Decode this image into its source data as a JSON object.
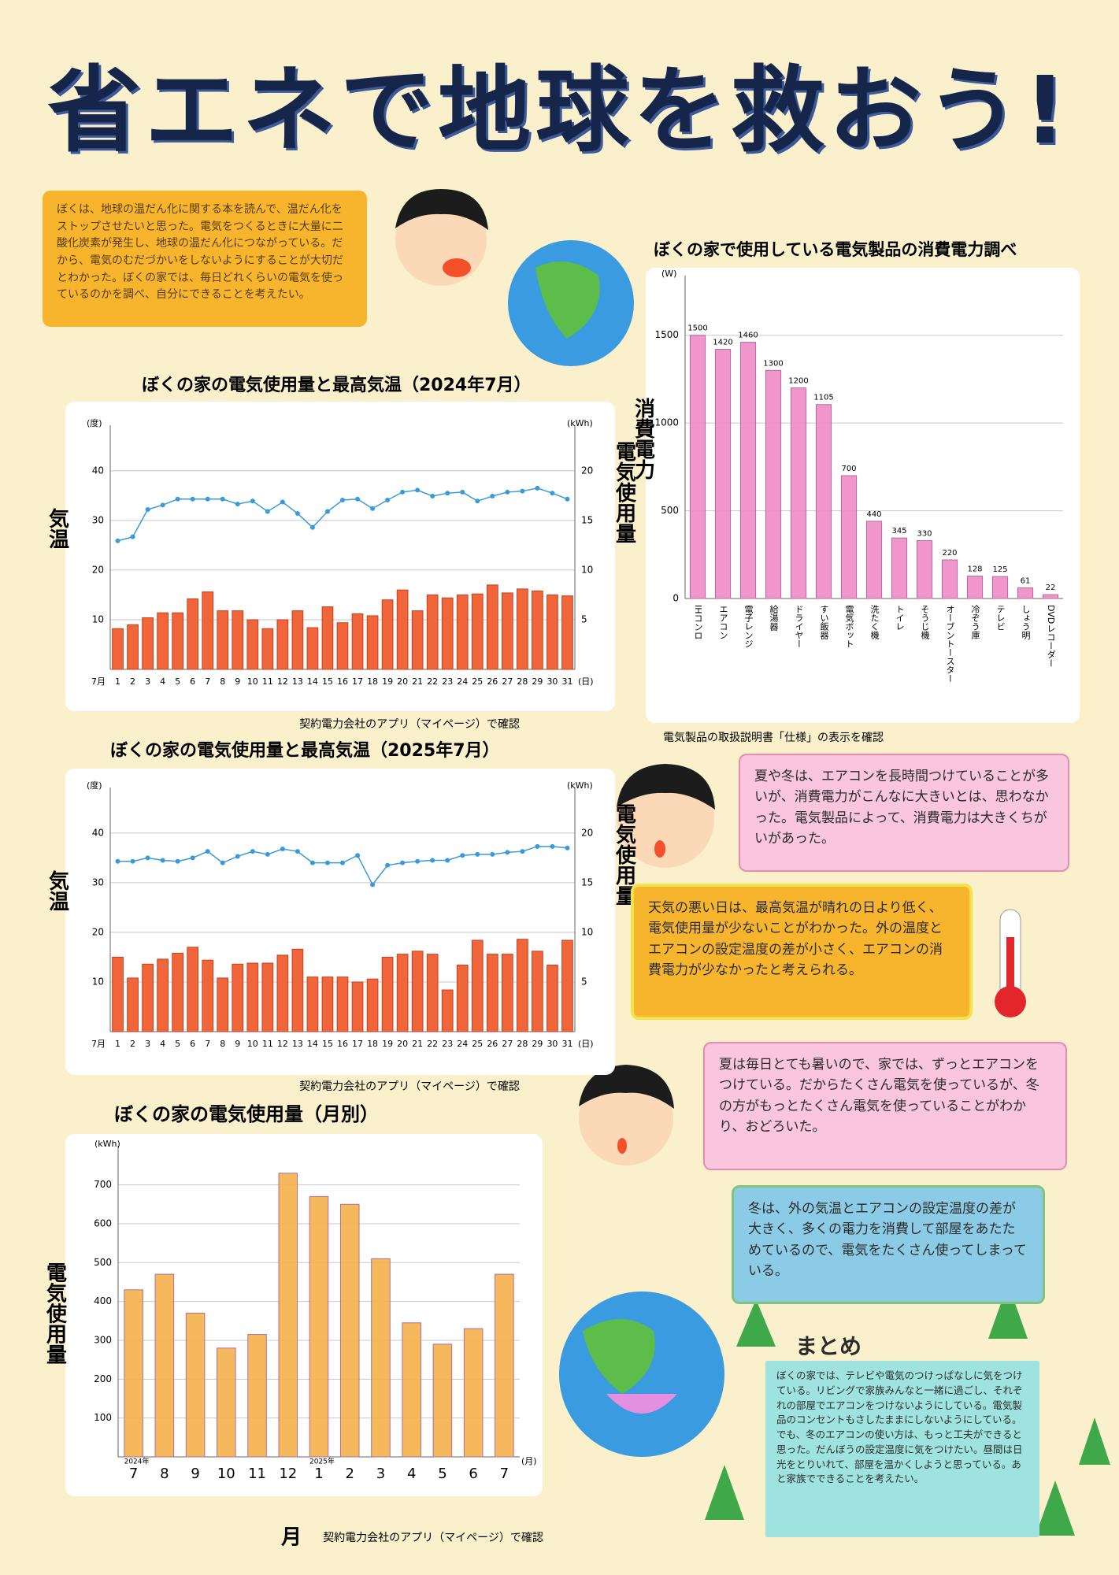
{
  "title": "省エネで地球を救おう!",
  "intro": "ぼくは、地球の温だん化に関する本を読んで、温だん化をストップさせたいと思った。電気をつくるときに大量に二酸化炭素が発生し、地球の温だん化につながっている。だから、電気のむだづかいをしないようにすることが大切だとわかった。ぼくの家では、毎日どれくらいの電気を使っているのかを調べ、自分にできることを考えたい。",
  "bubble_1": "夏や冬は、エアコンを長時間つけていることが多いが、消費電力がこんなに大きいとは、思わなかった。電気製品によって、消費電力は大きくちがいがあった。",
  "note_weather": "天気の悪い日は、最高気温が晴れの日より低く、電気使用量が少ないことがわかった。外の温度とエアコンの設定温度の差が小さく、エアコンの消費電力が少なかったと考えられる。",
  "bubble_2": "夏は毎日とても暑いので、家では、ずっとエアコンをつけている。だからたくさん電気を使っているが、冬の方がもっとたくさん電気を使っていることがわかり、おどろいた。",
  "note_winter": "冬は、外の気温とエアコンの設定温度の差が大きく、多くの電力を消費して部屋をあたためているので、電気をたくさん使ってしまっている。",
  "summary": {
    "title": "まとめ",
    "text": "ぼくの家では、テレビや電気のつけっぱなしに気をつけている。リビングで家族みんなと一緒に過ごし、それぞれの部屋でエアコンをつけないようにしている。電気製品のコンセントもさしたままにしないようにしている。でも、冬のエアコンの使い方は、もっと工夫ができると思った。だんぼうの設定温度に気をつけたい。昼間は日光をとりいれて、部屋を温かくしようと思っている。あと家族でできることを考えたい。"
  },
  "chart_data": [
    {
      "type": "combo",
      "title": "ぼくの家の電気使用量と最高気温（2024年7月）",
      "source": "契約電力会社のアプリ（マイページ）で確認",
      "y_label": "気温",
      "y2_label": "電気使用量",
      "y_unit": "(度)",
      "y2_unit": "(kWh)",
      "x_prefix": "7月",
      "x_unit": "(日)",
      "categories": [
        "1",
        "2",
        "3",
        "4",
        "5",
        "6",
        "7",
        "8",
        "9",
        "10",
        "11",
        "12",
        "13",
        "14",
        "15",
        "16",
        "17",
        "18",
        "19",
        "20",
        "21",
        "22",
        "23",
        "24",
        "25",
        "26",
        "27",
        "28",
        "29",
        "30",
        "31"
      ],
      "series": [
        {
          "type": "line",
          "color": "#3a9ad9",
          "values": [
            25.9,
            26.7,
            32.2,
            33.1,
            34.3,
            34.3,
            34.3,
            34.3,
            33.3,
            33.9,
            31.8,
            33.7,
            31.4,
            28.6,
            31.8,
            34.1,
            34.3,
            32.4,
            34.1,
            35.7,
            36.1,
            34.9,
            35.5,
            35.7,
            33.9,
            34.9,
            35.7,
            35.9,
            36.5,
            35.5,
            34.3
          ]
        },
        {
          "type": "bar",
          "axis": "y2",
          "color": "#f0653a",
          "values": [
            4.1,
            4.5,
            5.2,
            5.7,
            5.7,
            7.1,
            7.8,
            5.9,
            5.9,
            5.0,
            4.1,
            5.0,
            5.9,
            4.2,
            6.3,
            4.7,
            5.6,
            5.4,
            7.0,
            8.0,
            5.9,
            7.5,
            7.2,
            7.5,
            7.6,
            8.5,
            7.7,
            8.1,
            7.9,
            7.5,
            7.4
          ]
        }
      ],
      "ylim": [
        0,
        46
      ],
      "yticks": [
        10,
        20,
        30,
        40
      ],
      "y2lim": [
        0,
        23
      ],
      "y2ticks": [
        5,
        10,
        15,
        20
      ],
      "grid": true
    },
    {
      "type": "combo",
      "title": "ぼくの家の電気使用量と最高気温（2025年7月）",
      "source": "契約電力会社のアプリ（マイページ）で確認",
      "y_label": "気温",
      "y2_label": "電気使用量",
      "y_unit": "(度)",
      "y2_unit": "(kWh)",
      "x_prefix": "7月",
      "x_unit": "(日)",
      "categories": [
        "1",
        "2",
        "3",
        "4",
        "5",
        "6",
        "7",
        "8",
        "9",
        "10",
        "11",
        "12",
        "13",
        "14",
        "15",
        "16",
        "17",
        "18",
        "19",
        "20",
        "21",
        "22",
        "23",
        "24",
        "25",
        "26",
        "27",
        "28",
        "29",
        "30",
        "31"
      ],
      "series": [
        {
          "type": "line",
          "color": "#3a9ad9",
          "values": [
            34.3,
            34.3,
            35.0,
            34.5,
            34.3,
            35.0,
            36.3,
            34.0,
            35.3,
            36.3,
            35.7,
            36.8,
            36.3,
            34.0,
            34.0,
            34.0,
            35.5,
            29.6,
            33.5,
            34.0,
            34.3,
            34.5,
            34.5,
            35.5,
            35.7,
            35.7,
            36.1,
            36.3,
            37.3,
            37.3,
            37.0
          ]
        },
        {
          "type": "bar",
          "axis": "y2",
          "color": "#f0653a",
          "values": [
            7.5,
            5.4,
            6.8,
            7.3,
            7.9,
            8.5,
            7.2,
            5.4,
            6.8,
            6.9,
            6.9,
            7.7,
            8.3,
            5.5,
            5.5,
            5.5,
            5.0,
            5.3,
            7.5,
            7.8,
            8.1,
            7.8,
            4.2,
            6.7,
            9.2,
            7.8,
            7.8,
            9.3,
            8.1,
            6.7,
            9.2
          ]
        }
      ],
      "ylim": [
        0,
        46
      ],
      "yticks": [
        10,
        20,
        30,
        40
      ],
      "y2lim": [
        0,
        23
      ],
      "y2ticks": [
        5,
        10,
        15,
        20
      ],
      "grid": true
    },
    {
      "type": "bar",
      "title": "ぼくの家の電気使用量（月別）",
      "source": "契約電力会社のアプリ（マイページ）で確認",
      "y_label": "電気使用量",
      "y_unit": "(kWh)",
      "x_label": "月",
      "x_unit": "(月)",
      "categories": [
        "7",
        "8",
        "9",
        "10",
        "11",
        "12",
        "1",
        "2",
        "3",
        "4",
        "5",
        "6",
        "7"
      ],
      "year_labels": [
        "2024年",
        null,
        null,
        null,
        null,
        null,
        "2025年",
        null,
        null,
        null,
        null,
        null,
        null
      ],
      "values": [
        430,
        470,
        370,
        280,
        315,
        730,
        670,
        650,
        510,
        345,
        290,
        330,
        470
      ],
      "color": "#f5b04a",
      "ylim": [
        0,
        760
      ],
      "yticks": [
        100,
        200,
        300,
        400,
        500,
        600,
        700
      ],
      "grid": true
    },
    {
      "type": "bar",
      "title": "ぼくの家で使用している電気製品の消費電力調べ",
      "source": "電気製品の取扱説明書「仕様」の表示を確認",
      "y_label": "消費電力",
      "y_unit": "(W)",
      "categories": [
        "IHコンロ",
        "エアコン",
        "電子レンジ",
        "給湯器",
        "ドライヤー",
        "すい飯器",
        "電気ポット",
        "洗たく機",
        "トイレ",
        "そうじ機",
        "オーブントースター",
        "冷ぞう庫",
        "テレビ",
        "しょう明",
        "DVDレコーダー"
      ],
      "values": [
        1500,
        1420,
        1460,
        1300,
        1200,
        1105,
        700,
        440,
        345,
        330,
        220,
        128,
        125,
        61,
        22
      ],
      "show_values": true,
      "x_label_vertical": true,
      "color": "#f08bc8",
      "ylim": [
        0,
        1750
      ],
      "yticks": [
        0,
        500,
        1000,
        1500
      ],
      "grid": true
    }
  ]
}
